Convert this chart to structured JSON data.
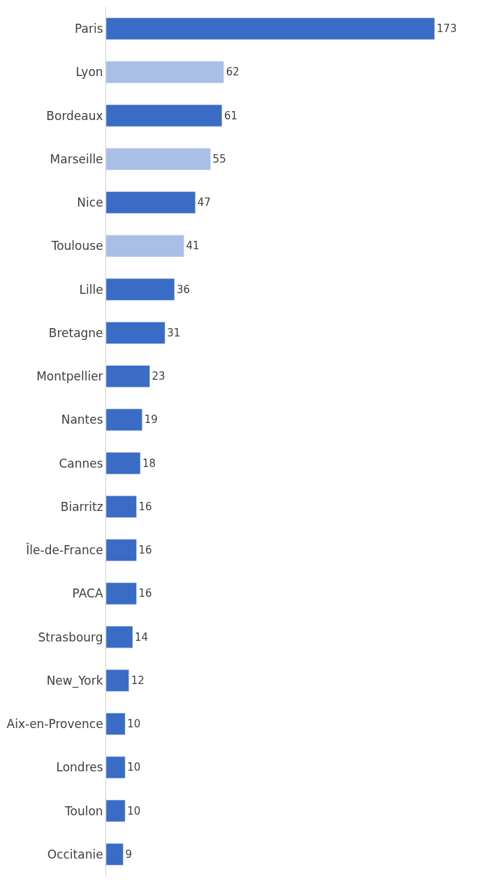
{
  "chart_data": {
    "type": "bar",
    "orientation": "horizontal",
    "data_labels": true,
    "categories": [
      "Paris",
      "Lyon",
      "Bordeaux",
      "Marseille",
      "Nice",
      "Toulouse",
      "Lille",
      "Bretagne",
      "Montpellier",
      "Nantes",
      "Cannes",
      "Biarritz",
      "Île-de-France",
      "PACA",
      "Strasbourg",
      "New_York",
      "Aix-en-Provence",
      "Londres",
      "Toulon",
      "Occitanie"
    ],
    "values": [
      173,
      62,
      61,
      55,
      47,
      41,
      36,
      31,
      23,
      19,
      18,
      16,
      16,
      16,
      14,
      12,
      10,
      10,
      10,
      9
    ],
    "colors": [
      "#3a6cc6",
      "#a9bfe6",
      "#3a6cc6",
      "#a9bfe6",
      "#3a6cc6",
      "#a9bfe6",
      "#3a6cc6",
      "#3a6cc6",
      "#3a6cc6",
      "#3a6cc6",
      "#3a6cc6",
      "#3a6cc6",
      "#3a6cc6",
      "#3a6cc6",
      "#3a6cc6",
      "#3a6cc6",
      "#3a6cc6",
      "#3a6cc6",
      "#3a6cc6",
      "#3a6cc6"
    ]
  }
}
